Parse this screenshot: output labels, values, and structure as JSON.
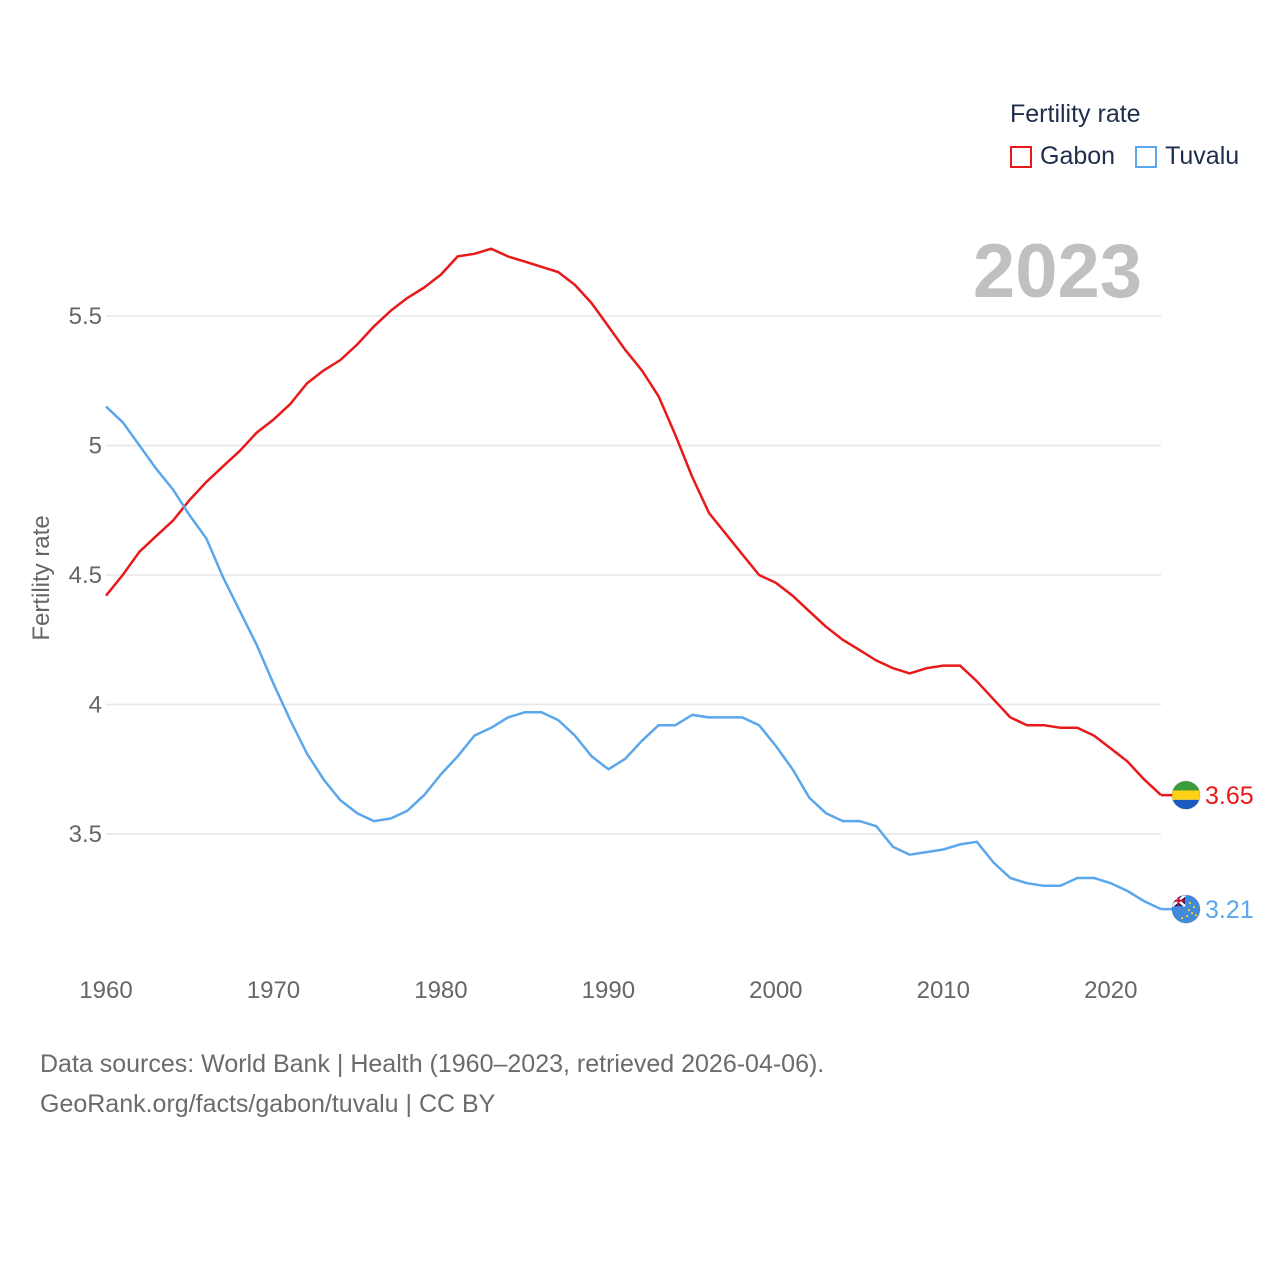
{
  "chart_data": {
    "type": "line",
    "title": "",
    "year_label": "2023",
    "xlabel": "",
    "ylabel": "Fertility rate",
    "legend_title": "Fertility rate",
    "legend_position": "top-right",
    "xlim": [
      1960,
      2023
    ],
    "ylim": [
      3.1,
      5.9
    ],
    "x_ticks": [
      1960,
      1970,
      1980,
      1990,
      2000,
      2010,
      2020
    ],
    "y_ticks": [
      3.5,
      4,
      4.5,
      5,
      5.5
    ],
    "y_tick_labels": [
      "3.5",
      "4",
      "4.5",
      "5",
      "5.5"
    ],
    "grid": true,
    "x": [
      1960,
      1961,
      1962,
      1963,
      1964,
      1965,
      1966,
      1967,
      1968,
      1969,
      1970,
      1971,
      1972,
      1973,
      1974,
      1975,
      1976,
      1977,
      1978,
      1979,
      1980,
      1981,
      1982,
      1983,
      1984,
      1985,
      1986,
      1987,
      1988,
      1989,
      1990,
      1991,
      1992,
      1993,
      1994,
      1995,
      1996,
      1997,
      1998,
      1999,
      2000,
      2001,
      2002,
      2003,
      2004,
      2005,
      2006,
      2007,
      2008,
      2009,
      2010,
      2011,
      2012,
      2013,
      2014,
      2015,
      2016,
      2017,
      2018,
      2019,
      2020,
      2021,
      2022,
      2023
    ],
    "series": [
      {
        "name": "Gabon",
        "color": "#e8191a",
        "end_label": "3.65",
        "flag": "gabon-flag-icon",
        "values": [
          4.42,
          4.5,
          4.59,
          4.65,
          4.71,
          4.79,
          4.86,
          4.92,
          4.98,
          5.05,
          5.1,
          5.16,
          5.24,
          5.29,
          5.33,
          5.39,
          5.46,
          5.52,
          5.57,
          5.61,
          5.66,
          5.73,
          5.74,
          5.76,
          5.73,
          5.71,
          5.69,
          5.67,
          5.62,
          5.55,
          5.46,
          5.37,
          5.29,
          5.19,
          5.04,
          4.88,
          4.74,
          4.66,
          4.58,
          4.5,
          4.47,
          4.42,
          4.36,
          4.3,
          4.25,
          4.21,
          4.17,
          4.14,
          4.12,
          4.14,
          4.15,
          4.15,
          4.09,
          4.02,
          3.95,
          3.92,
          3.92,
          3.91,
          3.91,
          3.88,
          3.83,
          3.78,
          3.71,
          3.65
        ]
      },
      {
        "name": "Tuvalu",
        "color": "#5aa7ec",
        "end_label": "3.21",
        "flag": "tuvalu-flag-icon",
        "values": [
          5.15,
          5.09,
          5.0,
          4.91,
          4.83,
          4.73,
          4.64,
          4.49,
          4.36,
          4.23,
          4.08,
          3.94,
          3.81,
          3.71,
          3.63,
          3.58,
          3.55,
          3.56,
          3.59,
          3.65,
          3.73,
          3.8,
          3.88,
          3.91,
          3.95,
          3.97,
          3.97,
          3.94,
          3.88,
          3.8,
          3.75,
          3.79,
          3.86,
          3.92,
          3.92,
          3.96,
          3.95,
          3.95,
          3.95,
          3.92,
          3.84,
          3.75,
          3.64,
          3.58,
          3.55,
          3.55,
          3.53,
          3.45,
          3.42,
          3.43,
          3.44,
          3.46,
          3.47,
          3.39,
          3.33,
          3.31,
          3.3,
          3.3,
          3.33,
          3.33,
          3.31,
          3.28,
          3.24,
          3.21
        ]
      }
    ]
  },
  "footer": {
    "line1": "Data sources: World Bank | Health (1960–2023, retrieved 2026-04-06).",
    "line2": "GeoRank.org/facts/gabon/tuvalu | CC BY"
  }
}
